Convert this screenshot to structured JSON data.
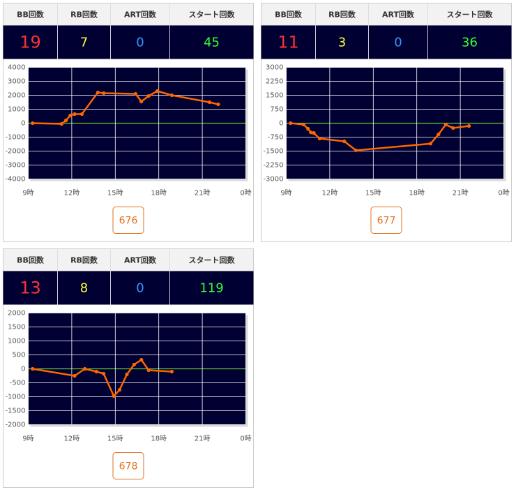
{
  "panels": [
    {
      "table": {
        "headers": [
          "BB回数",
          "RB回数",
          "ART回数",
          "スタート回数"
        ],
        "values": [
          19,
          7,
          0,
          45
        ],
        "colors": [
          "#ff3333",
          "#ffff33",
          "#3399ff",
          "#33ff33"
        ]
      },
      "chart_data": {
        "type": "line",
        "x": [
          9.3,
          11.3,
          11.6,
          11.9,
          12.2,
          12.7,
          13.8,
          14.2,
          16.4,
          16.8,
          17.3,
          17.9,
          18.9,
          21.5,
          22.1
        ],
        "values": [
          0,
          -50,
          200,
          550,
          650,
          650,
          2200,
          2150,
          2100,
          1550,
          1950,
          2300,
          2000,
          1500,
          1350
        ],
        "color": "#ff6600",
        "zero_line_color": "#66cc33",
        "background": "#000033",
        "grid": true,
        "xlim": [
          9,
          24
        ],
        "xticks": [
          {
            "value": 9,
            "label": "9時"
          },
          {
            "value": 12,
            "label": "12時"
          },
          {
            "value": 15,
            "label": "15時"
          },
          {
            "value": 18,
            "label": "18時"
          },
          {
            "value": 21,
            "label": "21時"
          },
          {
            "value": 24,
            "label": "0時"
          }
        ],
        "ylim": [
          -4000,
          4000
        ],
        "yticks": [
          4000,
          3000,
          2000,
          1000,
          0,
          -1000,
          -2000,
          -3000,
          -4000
        ]
      },
      "button": "676"
    },
    {
      "table": {
        "headers": [
          "BB回数",
          "RB回数",
          "ART回数",
          "スタート回数"
        ],
        "values": [
          11,
          3,
          0,
          36
        ],
        "colors": [
          "#ff3333",
          "#ffff33",
          "#3399ff",
          "#33ff33"
        ]
      },
      "chart_data": {
        "type": "line",
        "x": [
          9.3,
          10.2,
          10.5,
          10.7,
          10.9,
          11.3,
          13.0,
          13.8,
          18.95,
          19.5,
          20.0,
          20.5,
          21.6
        ],
        "values": [
          0,
          -75,
          -300,
          -500,
          -525,
          -825,
          -975,
          -1460,
          -1100,
          -600,
          -75,
          -260,
          -150
        ],
        "color": "#ff6600",
        "zero_line_color": "#66cc33",
        "background": "#000033",
        "grid": true,
        "xlim": [
          9,
          24
        ],
        "xticks": [
          {
            "value": 9,
            "label": "9時"
          },
          {
            "value": 12,
            "label": "12時"
          },
          {
            "value": 15,
            "label": "15時"
          },
          {
            "value": 18,
            "label": "18時"
          },
          {
            "value": 21,
            "label": "21時"
          },
          {
            "value": 24,
            "label": "0時"
          }
        ],
        "ylim": [
          -3000,
          3000
        ],
        "yticks": [
          3000,
          2250,
          1500,
          750,
          0,
          -750,
          -1500,
          -2250,
          -3000
        ]
      },
      "button": "677"
    },
    {
      "table": {
        "headers": [
          "BB回数",
          "RB回数",
          "ART回数",
          "スタート回数"
        ],
        "values": [
          13,
          8,
          0,
          119
        ],
        "colors": [
          "#ff3333",
          "#ffff33",
          "#3399ff",
          "#33ff33"
        ]
      },
      "chart_data": {
        "type": "line",
        "x": [
          9.3,
          12.2,
          12.9,
          13.7,
          14.2,
          14.9,
          15.3,
          15.8,
          16.3,
          16.8,
          17.3,
          18.9
        ],
        "values": [
          0,
          -250,
          0,
          -100,
          -175,
          -975,
          -750,
          -200,
          150,
          325,
          -50,
          -100
        ],
        "color": "#ff6600",
        "zero_line_color": "#66cc33",
        "background": "#000033",
        "grid": true,
        "xlim": [
          9,
          24
        ],
        "xticks": [
          {
            "value": 9,
            "label": "9時"
          },
          {
            "value": 12,
            "label": "12時"
          },
          {
            "value": 15,
            "label": "15時"
          },
          {
            "value": 18,
            "label": "18時"
          },
          {
            "value": 21,
            "label": "21時"
          },
          {
            "value": 24,
            "label": "0時"
          }
        ],
        "ylim": [
          -2000,
          2000
        ],
        "yticks": [
          2000,
          1500,
          1000,
          500,
          0,
          -500,
          -1000,
          -1500,
          -2000
        ]
      },
      "button": "678"
    }
  ]
}
